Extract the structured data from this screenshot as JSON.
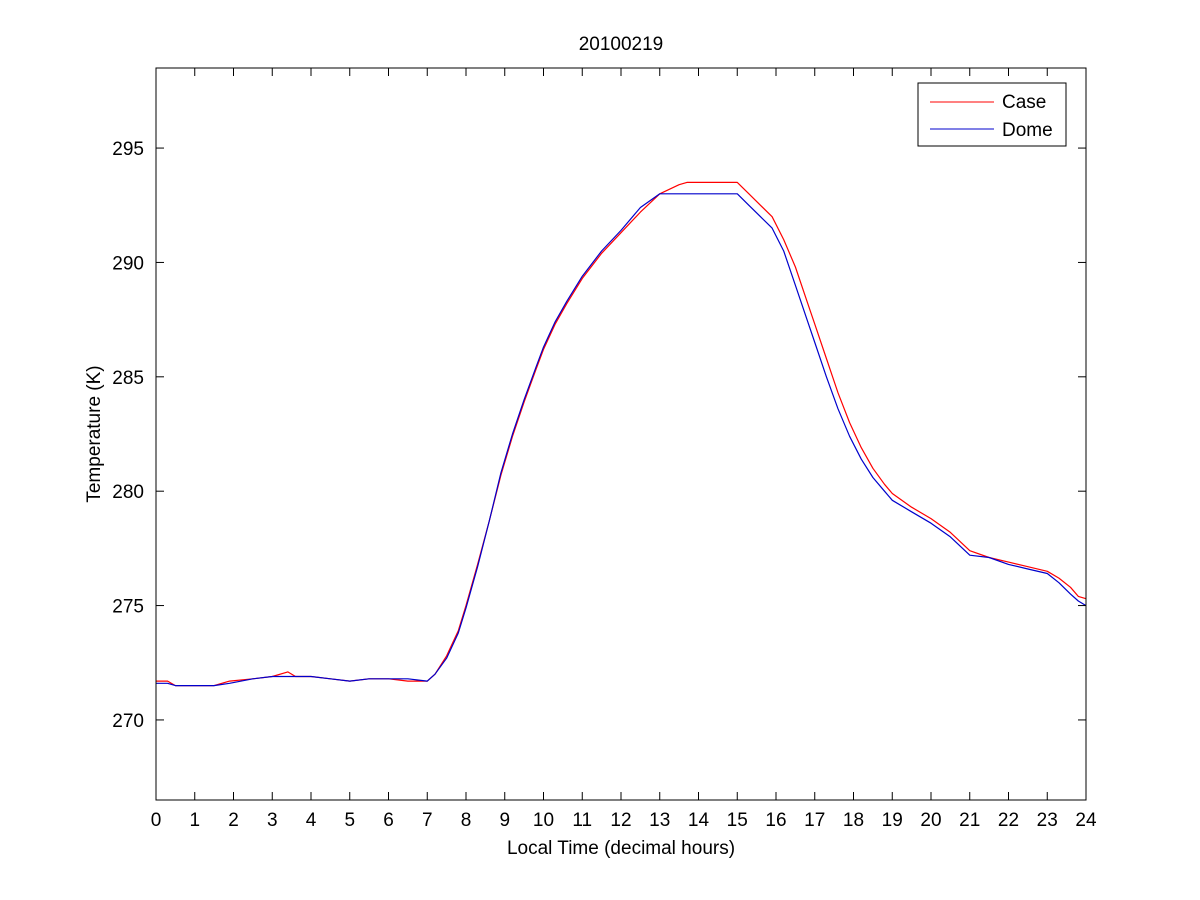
{
  "chart_data": {
    "type": "line",
    "title": "20100219",
    "xlabel": "Local Time (decimal hours)",
    "ylabel": "Temperature (K)",
    "xlim": [
      0,
      24
    ],
    "ylim": [
      266.5,
      298.5
    ],
    "x_ticks": [
      0,
      1,
      2,
      3,
      4,
      5,
      6,
      7,
      8,
      9,
      10,
      11,
      12,
      13,
      14,
      15,
      16,
      17,
      18,
      19,
      20,
      21,
      22,
      23,
      24
    ],
    "x_tick_labels": [
      "0",
      "1",
      "2",
      "3",
      "4",
      "5",
      "6",
      "7",
      "8",
      "9",
      "10",
      "11",
      "12",
      "13",
      "14",
      "15",
      "16",
      "17",
      "18",
      "19",
      "20",
      "21",
      "22",
      "23",
      "24"
    ],
    "y_ticks": [
      270,
      275,
      280,
      285,
      290,
      295
    ],
    "y_tick_labels": [
      "270",
      "275",
      "280",
      "285",
      "290",
      "295"
    ],
    "grid": false,
    "legend_position": "top-right",
    "series": [
      {
        "name": "Case",
        "color": "#ff0000",
        "x": [
          0,
          0.3,
          0.5,
          1.0,
          1.5,
          1.9,
          2.5,
          3.0,
          3.4,
          3.6,
          4.0,
          4.5,
          5.0,
          5.5,
          6.0,
          6.5,
          7.0,
          7.2,
          7.5,
          7.8,
          8.0,
          8.3,
          8.6,
          8.9,
          9.2,
          9.5,
          9.8,
          10.0,
          10.3,
          10.6,
          11.0,
          11.5,
          12.0,
          12.5,
          13.0,
          13.5,
          13.7,
          14.0,
          14.5,
          15.0,
          15.3,
          15.6,
          15.9,
          16.2,
          16.5,
          16.8,
          17.0,
          17.3,
          17.6,
          17.9,
          18.2,
          18.5,
          18.8,
          19.0,
          19.5,
          20.0,
          20.5,
          21.0,
          21.5,
          22.0,
          22.5,
          23.0,
          23.3,
          23.6,
          23.8,
          24.0
        ],
        "y": [
          271.7,
          271.7,
          271.5,
          271.5,
          271.5,
          271.7,
          271.8,
          271.9,
          272.1,
          271.9,
          271.9,
          271.8,
          271.7,
          271.8,
          271.8,
          271.7,
          271.7,
          272.0,
          272.8,
          273.9,
          275.0,
          276.8,
          278.7,
          280.7,
          282.4,
          283.9,
          285.3,
          286.2,
          287.3,
          288.2,
          289.3,
          290.4,
          291.3,
          292.2,
          293.0,
          293.4,
          293.5,
          293.5,
          293.5,
          293.5,
          293.0,
          292.5,
          292.0,
          291.0,
          289.8,
          288.3,
          287.3,
          285.8,
          284.3,
          283.0,
          281.9,
          281.0,
          280.3,
          279.9,
          279.3,
          278.8,
          278.2,
          277.4,
          277.1,
          276.9,
          276.7,
          276.5,
          276.2,
          275.8,
          275.4,
          275.3
        ]
      },
      {
        "name": "Dome",
        "color": "#0000cc",
        "x": [
          0,
          0.3,
          0.5,
          1.0,
          1.5,
          1.9,
          2.5,
          3.0,
          3.4,
          3.6,
          4.0,
          4.5,
          5.0,
          5.5,
          6.0,
          6.5,
          7.0,
          7.2,
          7.5,
          7.8,
          8.0,
          8.3,
          8.6,
          8.9,
          9.2,
          9.5,
          9.8,
          10.0,
          10.3,
          10.6,
          11.0,
          11.5,
          12.0,
          12.5,
          13.0,
          13.5,
          13.7,
          14.0,
          14.5,
          15.0,
          15.3,
          15.6,
          15.9,
          16.2,
          16.5,
          16.8,
          17.0,
          17.3,
          17.6,
          17.9,
          18.2,
          18.5,
          18.8,
          19.0,
          19.5,
          20.0,
          20.5,
          21.0,
          21.5,
          22.0,
          22.5,
          23.0,
          23.3,
          23.6,
          23.8,
          24.0
        ],
        "y": [
          271.6,
          271.6,
          271.5,
          271.5,
          271.5,
          271.6,
          271.8,
          271.9,
          271.9,
          271.9,
          271.9,
          271.8,
          271.7,
          271.8,
          271.8,
          271.8,
          271.7,
          272.0,
          272.7,
          273.8,
          274.9,
          276.7,
          278.7,
          280.8,
          282.5,
          284.0,
          285.4,
          286.3,
          287.4,
          288.3,
          289.4,
          290.5,
          291.4,
          292.4,
          293.0,
          293.0,
          293.0,
          293.0,
          293.0,
          293.0,
          292.5,
          292.0,
          291.5,
          290.5,
          289.0,
          287.5,
          286.5,
          285.0,
          283.6,
          282.4,
          281.4,
          280.6,
          280.0,
          279.6,
          279.1,
          278.6,
          278.0,
          277.2,
          277.1,
          276.8,
          276.6,
          276.4,
          276.0,
          275.5,
          275.2,
          275.0
        ]
      }
    ]
  }
}
